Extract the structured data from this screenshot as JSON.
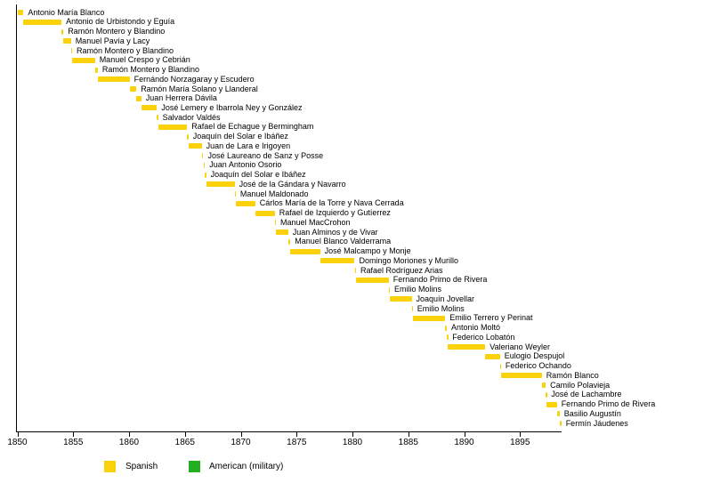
{
  "chart_data": {
    "type": "bar",
    "subtype": "timeline-gantt",
    "title": "",
    "xlabel": "",
    "ylabel": "",
    "grid": false,
    "legend_position": "bottom",
    "xlim": [
      1850,
      1898.8
    ],
    "x_ticks": [
      "1850",
      "1855",
      "1860",
      "1865",
      "1870",
      "1875",
      "1880",
      "1885",
      "1890",
      "1895"
    ],
    "x_tick_years": [
      1850,
      1855,
      1860,
      1865,
      1870,
      1875,
      1880,
      1885,
      1890,
      1895
    ],
    "legend": [
      {
        "label": "Spanish",
        "color": "#fbd10b"
      },
      {
        "label": "American (military)",
        "color": "#22b022"
      }
    ],
    "bars": [
      {
        "name": "Antonio María Blanco",
        "start": 1850.0,
        "end": 1850.55,
        "group": "Spanish"
      },
      {
        "name": "Antonio de Urbistondo y Eguía",
        "start": 1850.55,
        "end": 1853.95,
        "group": "Spanish"
      },
      {
        "name": "Ramón Montero y Blandino",
        "start": 1853.95,
        "end": 1854.12,
        "group": "Spanish"
      },
      {
        "name": "Manuel Pavía y Lacy",
        "start": 1854.12,
        "end": 1854.8,
        "group": "Spanish"
      },
      {
        "name": "Ramón Montero y Blandino",
        "start": 1854.8,
        "end": 1854.9,
        "group": "Spanish"
      },
      {
        "name": "Manuel Crespo y Cebrián",
        "start": 1854.9,
        "end": 1856.95,
        "group": "Spanish"
      },
      {
        "name": "Ramón Montero y Blandino",
        "start": 1856.95,
        "end": 1857.2,
        "group": "Spanish"
      },
      {
        "name": "Fernándo Norzagaray y Escudero",
        "start": 1857.2,
        "end": 1860.05,
        "group": "Spanish"
      },
      {
        "name": "Ramón María Solano y Llanderal",
        "start": 1860.05,
        "end": 1860.65,
        "group": "Spanish"
      },
      {
        "name": "Juan Herrera Dávila",
        "start": 1860.65,
        "end": 1861.1,
        "group": "Spanish"
      },
      {
        "name": "José Lemery e Ibarrola Ney y González",
        "start": 1861.1,
        "end": 1862.5,
        "group": "Spanish"
      },
      {
        "name": "Salvador Valdés",
        "start": 1862.5,
        "end": 1862.6,
        "group": "Spanish"
      },
      {
        "name": "Rafael de Echague y Bermingham",
        "start": 1862.6,
        "end": 1865.2,
        "group": "Spanish"
      },
      {
        "name": "Joaquín del Solar e Ibáñez",
        "start": 1865.2,
        "end": 1865.32,
        "group": "Spanish"
      },
      {
        "name": "Juan de Lara e Irigoyen",
        "start": 1865.32,
        "end": 1866.5,
        "group": "Spanish"
      },
      {
        "name": "José Laureano de Sanz y Posse",
        "start": 1866.5,
        "end": 1866.65,
        "group": "Spanish"
      },
      {
        "name": "Juan Antonio Osorio",
        "start": 1866.65,
        "end": 1866.8,
        "group": "Spanish"
      },
      {
        "name": "Joaquín del Solar e Ibáñez",
        "start": 1866.8,
        "end": 1866.9,
        "group": "Spanish"
      },
      {
        "name": "José de la Gándara y Navarro",
        "start": 1866.9,
        "end": 1869.45,
        "group": "Spanish"
      },
      {
        "name": "Manuel Maldonado",
        "start": 1869.45,
        "end": 1869.55,
        "group": "Spanish"
      },
      {
        "name": "Cárlos María de la Torre y Nava Cerrada",
        "start": 1869.55,
        "end": 1871.3,
        "group": "Spanish"
      },
      {
        "name": "Rafael de Izquierdo y Gutíerrez",
        "start": 1871.3,
        "end": 1873.05,
        "group": "Spanish"
      },
      {
        "name": "Manuel MacCrohon",
        "start": 1873.05,
        "end": 1873.15,
        "group": "Spanish"
      },
      {
        "name": "Juan Alminos y de Vivar",
        "start": 1873.15,
        "end": 1874.25,
        "group": "Spanish"
      },
      {
        "name": "Manuel Blanco Valderrama",
        "start": 1874.25,
        "end": 1874.45,
        "group": "Spanish"
      },
      {
        "name": "José Malcampo y Monje",
        "start": 1874.45,
        "end": 1877.1,
        "group": "Spanish"
      },
      {
        "name": "Domingo Moriones y Murillo",
        "start": 1877.1,
        "end": 1880.2,
        "group": "Spanish"
      },
      {
        "name": "Rafael Rodríguez Arias",
        "start": 1880.2,
        "end": 1880.32,
        "group": "Spanish"
      },
      {
        "name": "Fernando Primo de Rivera",
        "start": 1880.32,
        "end": 1883.25,
        "group": "Spanish"
      },
      {
        "name": "Emilio Molins",
        "start": 1883.25,
        "end": 1883.35,
        "group": "Spanish"
      },
      {
        "name": "Joaquín Jovellar",
        "start": 1883.35,
        "end": 1885.3,
        "group": "Spanish"
      },
      {
        "name": "Emilio Molins",
        "start": 1885.3,
        "end": 1885.4,
        "group": "Spanish"
      },
      {
        "name": "Emilio Terrero y Perinat",
        "start": 1885.4,
        "end": 1888.3,
        "group": "Spanish"
      },
      {
        "name": "Antonio Moltó",
        "start": 1888.3,
        "end": 1888.45,
        "group": "Spanish"
      },
      {
        "name": "Federico Lobatón",
        "start": 1888.45,
        "end": 1888.55,
        "group": "Spanish"
      },
      {
        "name": "Valeriano Weyler",
        "start": 1888.55,
        "end": 1891.9,
        "group": "Spanish"
      },
      {
        "name": "Eulogio Despujol",
        "start": 1891.9,
        "end": 1893.2,
        "group": "Spanish"
      },
      {
        "name": "Federico Ochando",
        "start": 1893.2,
        "end": 1893.3,
        "group": "Spanish"
      },
      {
        "name": "Ramón Blanco",
        "start": 1893.3,
        "end": 1896.95,
        "group": "Spanish"
      },
      {
        "name": "Camilo Polavieja",
        "start": 1896.95,
        "end": 1897.3,
        "group": "Spanish"
      },
      {
        "name": "José de Lachambre",
        "start": 1897.3,
        "end": 1897.4,
        "group": "Spanish"
      },
      {
        "name": "Fernando Primo de Rivera",
        "start": 1897.4,
        "end": 1898.3,
        "group": "Spanish"
      },
      {
        "name": "Basilio Augustín",
        "start": 1898.3,
        "end": 1898.55,
        "group": "Spanish"
      },
      {
        "name": "Fermín Jáudenes",
        "start": 1898.55,
        "end": 1898.7,
        "group": "Spanish"
      }
    ]
  }
}
